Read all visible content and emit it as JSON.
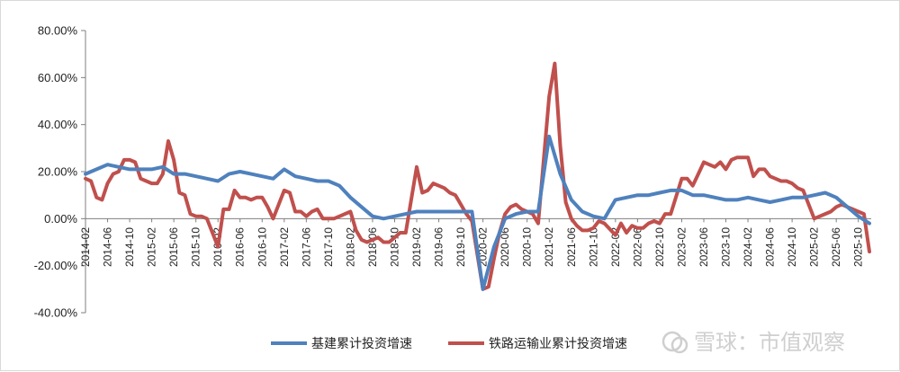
{
  "chart_data": {
    "type": "line",
    "title": "",
    "xlabel": "",
    "ylabel": "",
    "ylim": [
      -40,
      80
    ],
    "y_ticks": [
      "80.00%",
      "60.00%",
      "40.00%",
      "20.00%",
      "0.00%",
      "-20.00%",
      "-40.00%"
    ],
    "x_tick_labels": [
      "2014-02",
      "2014-06",
      "2014-10",
      "2015-02",
      "2015-06",
      "2015-10",
      "2016-02",
      "2016-06",
      "2016-10",
      "2017-02",
      "2017-06",
      "2017-10",
      "2018-02",
      "2018-06",
      "2018-10",
      "2019-02",
      "2019-06",
      "2019-10",
      "2020-02",
      "2020-06",
      "2020-10",
      "2021-02",
      "2021-06",
      "2021-10",
      "2022-02",
      "2022-06",
      "2022-10",
      "2023-02",
      "2023-06",
      "2023-10",
      "2024-02",
      "2024-06",
      "2024-10",
      "2025-02",
      "2025-06",
      "2025-10"
    ],
    "legend_position": "bottom",
    "grid": false,
    "series": [
      {
        "name": "基建累计投资增速",
        "color": "#4f81bd",
        "points": [
          [
            "2014-02",
            19
          ],
          [
            "2014-04",
            21
          ],
          [
            "2014-06",
            23
          ],
          [
            "2014-08",
            22
          ],
          [
            "2014-10",
            21
          ],
          [
            "2014-12",
            21
          ],
          [
            "2015-02",
            21
          ],
          [
            "2015-04",
            22
          ],
          [
            "2015-06",
            19
          ],
          [
            "2015-08",
            19
          ],
          [
            "2015-10",
            18
          ],
          [
            "2015-12",
            17
          ],
          [
            "2016-02",
            16
          ],
          [
            "2016-04",
            19
          ],
          [
            "2016-06",
            20
          ],
          [
            "2016-08",
            19
          ],
          [
            "2016-10",
            18
          ],
          [
            "2016-12",
            17
          ],
          [
            "2017-02",
            21
          ],
          [
            "2017-04",
            18
          ],
          [
            "2017-06",
            17
          ],
          [
            "2017-08",
            16
          ],
          [
            "2017-10",
            16
          ],
          [
            "2017-12",
            14
          ],
          [
            "2018-02",
            9
          ],
          [
            "2018-04",
            5
          ],
          [
            "2018-06",
            1
          ],
          [
            "2018-08",
            0
          ],
          [
            "2018-10",
            1
          ],
          [
            "2018-12",
            2
          ],
          [
            "2019-02",
            3
          ],
          [
            "2019-04",
            3
          ],
          [
            "2019-06",
            3
          ],
          [
            "2019-08",
            3
          ],
          [
            "2019-10",
            3
          ],
          [
            "2019-12",
            3
          ],
          [
            "2020-02",
            -30
          ],
          [
            "2020-04",
            -12
          ],
          [
            "2020-06",
            0
          ],
          [
            "2020-08",
            2
          ],
          [
            "2020-10",
            3
          ],
          [
            "2020-12",
            3
          ],
          [
            "2021-02",
            35
          ],
          [
            "2021-04",
            19
          ],
          [
            "2021-06",
            8
          ],
          [
            "2021-08",
            3
          ],
          [
            "2021-10",
            1
          ],
          [
            "2021-12",
            0
          ],
          [
            "2022-02",
            8
          ],
          [
            "2022-04",
            9
          ],
          [
            "2022-06",
            10
          ],
          [
            "2022-08",
            10
          ],
          [
            "2022-10",
            11
          ],
          [
            "2022-12",
            12
          ],
          [
            "2023-02",
            12
          ],
          [
            "2023-04",
            10
          ],
          [
            "2023-06",
            10
          ],
          [
            "2023-08",
            9
          ],
          [
            "2023-10",
            8
          ],
          [
            "2023-12",
            8
          ],
          [
            "2024-02",
            9
          ],
          [
            "2024-04",
            8
          ],
          [
            "2024-06",
            7
          ],
          [
            "2024-08",
            8
          ],
          [
            "2024-10",
            9
          ],
          [
            "2024-12",
            9
          ],
          [
            "2025-02",
            10
          ],
          [
            "2025-04",
            11
          ],
          [
            "2025-06",
            9
          ],
          [
            "2025-08",
            5
          ],
          [
            "2025-10",
            1
          ],
          [
            "2025-12",
            -2
          ]
        ]
      },
      {
        "name": "铁路运输业累计投资增速",
        "color": "#c0504d",
        "points": [
          [
            "2014-02",
            17
          ],
          [
            "2014-03",
            16
          ],
          [
            "2014-04",
            9
          ],
          [
            "2014-05",
            8
          ],
          [
            "2014-06",
            15
          ],
          [
            "2014-07",
            19
          ],
          [
            "2014-08",
            20
          ],
          [
            "2014-09",
            25
          ],
          [
            "2014-10",
            25
          ],
          [
            "2014-11",
            24
          ],
          [
            "2014-12",
            17
          ],
          [
            "2015-01",
            16
          ],
          [
            "2015-02",
            15
          ],
          [
            "2015-03",
            15
          ],
          [
            "2015-04",
            19
          ],
          [
            "2015-05",
            33
          ],
          [
            "2015-06",
            25
          ],
          [
            "2015-07",
            11
          ],
          [
            "2015-08",
            10
          ],
          [
            "2015-09",
            2
          ],
          [
            "2015-10",
            1
          ],
          [
            "2015-11",
            1
          ],
          [
            "2015-12",
            0
          ],
          [
            "2016-02",
            -12
          ],
          [
            "2016-03",
            4
          ],
          [
            "2016-04",
            4
          ],
          [
            "2016-05",
            12
          ],
          [
            "2016-06",
            9
          ],
          [
            "2016-07",
            9
          ],
          [
            "2016-08",
            8
          ],
          [
            "2016-09",
            9
          ],
          [
            "2016-10",
            9
          ],
          [
            "2016-11",
            5
          ],
          [
            "2016-12",
            0
          ],
          [
            "2017-02",
            12
          ],
          [
            "2017-03",
            11
          ],
          [
            "2017-04",
            3
          ],
          [
            "2017-05",
            3
          ],
          [
            "2017-06",
            1
          ],
          [
            "2017-07",
            3
          ],
          [
            "2017-08",
            4
          ],
          [
            "2017-09",
            0
          ],
          [
            "2017-10",
            0
          ],
          [
            "2017-11",
            0
          ],
          [
            "2017-12",
            1
          ],
          [
            "2018-02",
            3
          ],
          [
            "2018-03",
            -5
          ],
          [
            "2018-04",
            -9
          ],
          [
            "2018-05",
            -10
          ],
          [
            "2018-06",
            -9
          ],
          [
            "2018-07",
            -8
          ],
          [
            "2018-08",
            -10
          ],
          [
            "2018-09",
            -10
          ],
          [
            "2018-10",
            -8
          ],
          [
            "2018-11",
            -6
          ],
          [
            "2018-12",
            -6
          ],
          [
            "2019-02",
            22
          ],
          [
            "2019-03",
            11
          ],
          [
            "2019-04",
            12
          ],
          [
            "2019-05",
            15
          ],
          [
            "2019-06",
            14
          ],
          [
            "2019-07",
            13
          ],
          [
            "2019-08",
            11
          ],
          [
            "2019-09",
            10
          ],
          [
            "2019-10",
            6
          ],
          [
            "2019-11",
            2
          ],
          [
            "2019-12",
            -1
          ],
          [
            "2020-02",
            -30
          ],
          [
            "2020-03",
            -29
          ],
          [
            "2020-04",
            -17
          ],
          [
            "2020-05",
            -6
          ],
          [
            "2020-06",
            2
          ],
          [
            "2020-07",
            5
          ],
          [
            "2020-08",
            6
          ],
          [
            "2020-09",
            4
          ],
          [
            "2020-10",
            3
          ],
          [
            "2020-11",
            2
          ],
          [
            "2020-12",
            -2
          ],
          [
            "2021-02",
            52
          ],
          [
            "2021-03",
            66
          ],
          [
            "2021-04",
            31
          ],
          [
            "2021-05",
            7
          ],
          [
            "2021-06",
            0
          ],
          [
            "2021-07",
            -3
          ],
          [
            "2021-08",
            -5
          ],
          [
            "2021-09",
            -5
          ],
          [
            "2021-10",
            -4
          ],
          [
            "2021-11",
            -1
          ],
          [
            "2021-12",
            -2
          ],
          [
            "2022-02",
            -7
          ],
          [
            "2022-03",
            -2
          ],
          [
            "2022-04",
            -6
          ],
          [
            "2022-05",
            -3
          ],
          [
            "2022-06",
            -4
          ],
          [
            "2022-07",
            -4
          ],
          [
            "2022-08",
            -2
          ],
          [
            "2022-09",
            -1
          ],
          [
            "2022-10",
            -2
          ],
          [
            "2022-11",
            2
          ],
          [
            "2022-12",
            2
          ],
          [
            "2023-02",
            17
          ],
          [
            "2023-03",
            17
          ],
          [
            "2023-04",
            14
          ],
          [
            "2023-05",
            19
          ],
          [
            "2023-06",
            24
          ],
          [
            "2023-07",
            23
          ],
          [
            "2023-08",
            22
          ],
          [
            "2023-09",
            24
          ],
          [
            "2023-10",
            21
          ],
          [
            "2023-11",
            25
          ],
          [
            "2023-12",
            26
          ],
          [
            "2024-02",
            26
          ],
          [
            "2024-03",
            18
          ],
          [
            "2024-04",
            21
          ],
          [
            "2024-05",
            21
          ],
          [
            "2024-06",
            18
          ],
          [
            "2024-07",
            17
          ],
          [
            "2024-08",
            16
          ],
          [
            "2024-09",
            16
          ],
          [
            "2024-10",
            15
          ],
          [
            "2024-11",
            13
          ],
          [
            "2024-12",
            12
          ],
          [
            "2025-02",
            0
          ],
          [
            "2025-03",
            1
          ],
          [
            "2025-04",
            2
          ],
          [
            "2025-05",
            3
          ],
          [
            "2025-06",
            5
          ],
          [
            "2025-07",
            6
          ],
          [
            "2025-08",
            5
          ],
          [
            "2025-09",
            4
          ],
          [
            "2025-10",
            3
          ],
          [
            "2025-11",
            2
          ],
          [
            "2025-12",
            -14
          ]
        ]
      }
    ]
  },
  "watermark": "雪球：市值观察"
}
